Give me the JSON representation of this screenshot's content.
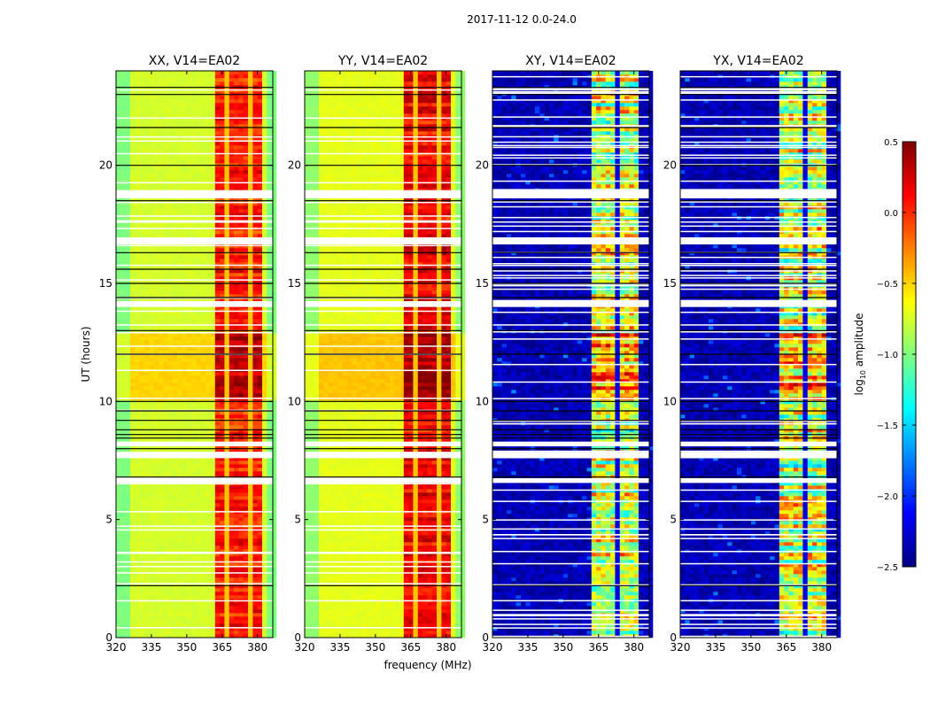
{
  "chart_data": {
    "type": "heatmap",
    "suptitle": "2017-11-12 0.0-24.0",
    "xlabel": "frequency (MHz)",
    "ylabel": "UT (hours)",
    "xlim": [
      320,
      386.5
    ],
    "ylim": [
      0,
      24
    ],
    "xticks": [
      "320",
      "335",
      "350",
      "365",
      "380"
    ],
    "xtick_values": [
      320,
      335,
      350,
      365,
      380
    ],
    "yticks": [
      "0",
      "5",
      "10",
      "15",
      "20"
    ],
    "ytick_values": [
      0,
      5,
      10,
      15,
      20
    ],
    "colormap": "jet",
    "colorbar": {
      "label_prefix": "log",
      "label_sub": "10",
      "label_suffix": " amplitude",
      "range": [
        -2.5,
        0.5
      ],
      "ticks": [
        "0.5",
        "0.0",
        "−0.5",
        "−1.0",
        "−1.5",
        "−2.0",
        "−2.5"
      ],
      "tick_values": [
        0.5,
        0.0,
        -0.5,
        -1.0,
        -1.5,
        -2.0,
        -2.5
      ]
    },
    "panels": [
      {
        "title": "XX, V14=EA02",
        "kind": "parallel",
        "base_level": -0.75,
        "band_level": 0.05
      },
      {
        "title": "YY, V14=EA02",
        "kind": "parallel",
        "base_level": -0.7,
        "band_level": 0.15
      },
      {
        "title": "XY, V14=EA02",
        "kind": "cross",
        "base_level": -2.35,
        "band_level": -0.8
      },
      {
        "title": "YX, V14=EA02",
        "kind": "cross",
        "base_level": -2.35,
        "band_level": -0.8
      }
    ],
    "rfi_band_mhz": [
      362,
      381
    ],
    "no_data_hours": [
      [
        18.6,
        18.95
      ],
      [
        16.65,
        16.95
      ],
      [
        14.0,
        14.25
      ],
      [
        8.1,
        8.3
      ],
      [
        7.6,
        7.87
      ],
      [
        6.55,
        6.75
      ]
    ],
    "flag_line_hours": [
      23.3,
      23.0,
      21.6,
      20.0,
      18.5,
      16.3,
      15.6,
      15.0,
      14.4,
      13.0,
      12.0,
      10.0,
      9.6,
      9.2,
      8.8,
      8.6,
      8.45,
      8.0,
      6.8,
      2.2
    ],
    "bright_interval_hours": [
      [
        10.0,
        12.9
      ]
    ]
  }
}
